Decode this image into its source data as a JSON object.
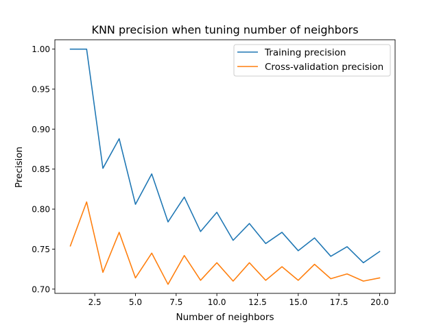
{
  "chart_data": {
    "type": "line",
    "title": "KNN precision when tuning number of neighbors",
    "xlabel": "Number of neighbors",
    "ylabel": "Precision",
    "xlim": [
      0.05,
      20.95
    ],
    "ylim": [
      0.6947,
      1.0117
    ],
    "xticks": [
      2.5,
      5.0,
      7.5,
      10.0,
      12.5,
      15.0,
      17.5,
      20.0
    ],
    "xtick_labels": [
      "2.5",
      "5.0",
      "7.5",
      "10.0",
      "12.5",
      "15.0",
      "17.5",
      "20.0"
    ],
    "yticks": [
      0.7,
      0.75,
      0.8,
      0.85,
      0.9,
      0.95,
      1.0
    ],
    "ytick_labels": [
      "0.70",
      "0.75",
      "0.80",
      "0.85",
      "0.90",
      "0.95",
      "1.00"
    ],
    "grid": false,
    "legend_position": "upper-right",
    "x": [
      1,
      2,
      3,
      4,
      5,
      6,
      7,
      8,
      9,
      10,
      11,
      12,
      13,
      14,
      15,
      16,
      17,
      18,
      19,
      20
    ],
    "series": [
      {
        "name": "Training precision",
        "color": "#1f77b4",
        "values": [
          1.0,
          1.0,
          0.851,
          0.888,
          0.806,
          0.844,
          0.784,
          0.815,
          0.772,
          0.796,
          0.761,
          0.782,
          0.757,
          0.771,
          0.748,
          0.764,
          0.741,
          0.753,
          0.733,
          0.747
        ]
      },
      {
        "name": "Cross-validation precision",
        "color": "#ff7f0e",
        "values": [
          0.754,
          0.809,
          0.721,
          0.771,
          0.714,
          0.745,
          0.706,
          0.742,
          0.711,
          0.733,
          0.71,
          0.733,
          0.711,
          0.728,
          0.711,
          0.731,
          0.713,
          0.719,
          0.71,
          0.714
        ]
      }
    ]
  }
}
